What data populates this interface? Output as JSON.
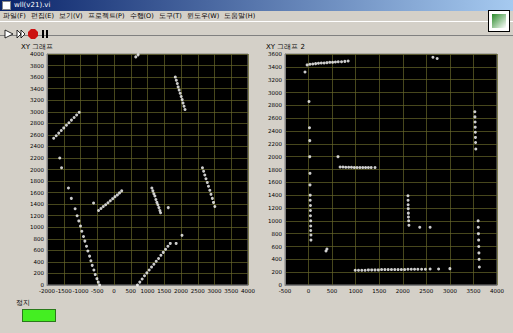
{
  "window": {
    "title": "wll(v21).vi",
    "menu": [
      "파일(F)",
      "편집(E)",
      "보기(V)",
      "프로젝트(P)",
      "수행(O)",
      "도구(T)",
      "윈도우(W)",
      "도움말(H)"
    ],
    "indicator_label": "정지"
  },
  "chart_data": [
    {
      "type": "scatter",
      "title": "XY 그래프",
      "color": "#ffffff",
      "marker": "circle",
      "grid": true,
      "xlim": [
        -2000,
        4000
      ],
      "xticks": [
        -2000,
        -1500,
        -1000,
        -500,
        0,
        500,
        1000,
        1500,
        2000,
        2500,
        3000,
        3500,
        4000
      ],
      "ylim": [
        0,
        4000
      ],
      "yticks": [
        0,
        200,
        400,
        600,
        800,
        1000,
        1200,
        1400,
        1600,
        1800,
        2000,
        2200,
        2400,
        2600,
        2800,
        3000,
        3200,
        3400,
        3600,
        3800,
        4000
      ],
      "x": [
        650,
        720,
        -1800,
        -1725,
        -1650,
        -1575,
        -1500,
        -1420,
        -1345,
        -1270,
        -1190,
        -1115,
        -1040,
        1830,
        1860,
        1890,
        1915,
        1945,
        1975,
        2005,
        2035,
        2060,
        2090,
        2120,
        -1620,
        -1565,
        -1360,
        -1275,
        -1160,
        -1100,
        -1050,
        -1000,
        -960,
        -910,
        -870,
        -820,
        -780,
        -730,
        -690,
        -650,
        -600,
        -560,
        -510,
        -470,
        -430,
        -610,
        -460,
        -390,
        -320,
        -250,
        -180,
        -110,
        -40,
        30,
        100,
        165,
        230,
        1130,
        1160,
        1190,
        1220,
        1250,
        1280,
        1310,
        1340,
        1370,
        1390,
        1620,
        2640,
        2675,
        2710,
        2745,
        2785,
        2820,
        2860,
        2895,
        2935,
        2970,
        3010,
        700,
        770,
        840,
        910,
        980,
        1050,
        1120,
        1190,
        1260,
        1330,
        1400,
        1470,
        1540,
        1610,
        1680,
        1855,
        2030
      ],
      "values": [
        3950,
        3985,
        2540,
        2585,
        2630,
        2675,
        2720,
        2765,
        2810,
        2855,
        2900,
        2945,
        2990,
        3600,
        3545,
        3490,
        3430,
        3375,
        3320,
        3265,
        3210,
        3150,
        3095,
        3040,
        2200,
        2030,
        1680,
        1500,
        1320,
        1200,
        1110,
        1020,
        930,
        840,
        760,
        670,
        590,
        500,
        420,
        340,
        260,
        180,
        110,
        50,
        0,
        1420,
        1290,
        1325,
        1360,
        1390,
        1425,
        1460,
        1495,
        1530,
        1560,
        1595,
        1630,
        1680,
        1630,
        1580,
        1540,
        1480,
        1430,
        1390,
        1340,
        1290,
        1250,
        1340,
        2030,
        1970,
        1905,
        1840,
        1775,
        1710,
        1640,
        1570,
        1500,
        1430,
        1360,
        0,
        50,
        105,
        160,
        210,
        260,
        310,
        360,
        410,
        460,
        515,
        565,
        620,
        670,
        720,
        720,
        860
      ]
    },
    {
      "type": "scatter",
      "title": "XY 그래프 2",
      "color": "#ffffff",
      "marker": "circle",
      "grid": true,
      "xlim": [
        -500,
        4000
      ],
      "xticks": [
        -500,
        0,
        500,
        1000,
        1500,
        2000,
        2500,
        3000,
        3500,
        4000
      ],
      "ylim": [
        0,
        3600
      ],
      "yticks": [
        0,
        200,
        400,
        600,
        800,
        1000,
        1200,
        1400,
        1600,
        1800,
        2000,
        2200,
        2400,
        2600,
        2800,
        3000,
        3200,
        3400,
        3600
      ],
      "x": [
        -75,
        -30,
        30,
        90,
        150,
        210,
        270,
        330,
        390,
        450,
        510,
        570,
        630,
        700,
        770,
        840,
        2640,
        2730,
        10,
        20,
        25,
        25,
        30,
        30,
        35,
        35,
        40,
        40,
        40,
        45,
        45,
        45,
        50,
        50,
        390,
        370,
        625,
        670,
        730,
        790,
        850,
        910,
        970,
        1030,
        1090,
        1150,
        1210,
        1270,
        1330,
        1410,
        2110,
        2112,
        2114,
        2116,
        2118,
        2120,
        2125,
        2130,
        2360,
        2580,
        3530,
        3532,
        3535,
        3537,
        3540,
        3542,
        3545,
        3550,
        3600,
        3603,
        3606,
        3610,
        3613,
        3616,
        3620,
        3625,
        990,
        1060,
        1130,
        1200,
        1270,
        1340,
        1410,
        1480,
        1550,
        1620,
        1690,
        1760,
        1830,
        1900,
        1970,
        2040,
        2110,
        2180,
        2250,
        2320,
        2400,
        2480,
        2580,
        2760,
        3000
      ],
      "values": [
        3320,
        3430,
        3440,
        3445,
        3450,
        3455,
        3460,
        3460,
        3465,
        3470,
        3470,
        3475,
        3480,
        3480,
        3485,
        3490,
        3550,
        3530,
        2860,
        2450,
        2250,
        2000,
        1740,
        1560,
        1400,
        1320,
        1240,
        1160,
        1080,
        1000,
        920,
        850,
        780,
        700,
        560,
        530,
        2000,
        1840,
        1840,
        1835,
        1835,
        1835,
        1830,
        1830,
        1830,
        1830,
        1830,
        1830,
        1830,
        1830,
        1390,
        1320,
        1250,
        1190,
        1120,
        1060,
        1000,
        930,
        900,
        900,
        2700,
        2620,
        2540,
        2460,
        2380,
        2300,
        2220,
        2120,
        1000,
        900,
        800,
        700,
        600,
        500,
        400,
        280,
        230,
        230,
        230,
        230,
        235,
        235,
        235,
        235,
        240,
        240,
        240,
        240,
        240,
        240,
        240,
        240,
        245,
        245,
        245,
        245,
        245,
        245,
        250,
        250,
        255
      ]
    }
  ]
}
